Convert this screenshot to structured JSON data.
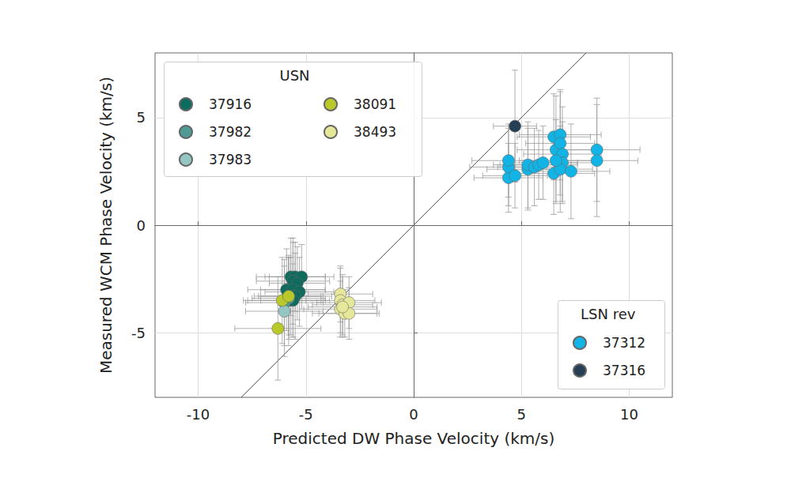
{
  "chart_data": {
    "type": "scatter",
    "x_label": "Predicted DW Phase Velocity (km/s)",
    "y_label": "Measured WCM Phase Velocity (km/s)",
    "xlim": [
      -12,
      12
    ],
    "ylim": [
      -8,
      8
    ],
    "xticks": [
      -10,
      -5,
      0,
      5,
      10
    ],
    "yticks": [
      -5,
      0,
      5
    ],
    "grid": true,
    "marker": "circle",
    "reference_line": {
      "x": [
        -8,
        8
      ],
      "y": [
        -8,
        8
      ],
      "color": "#555555"
    },
    "legend_groups": [
      {
        "title": "USN",
        "legend": "upper left"
      },
      {
        "title": "LSN rev",
        "legend": "lower right"
      }
    ],
    "series": [
      {
        "name": "37916",
        "group": "USN",
        "color": "#0e6b5e",
        "x": [
          -5.7,
          -5.5,
          -5.2,
          -5.6,
          -5.4,
          -5.9,
          -5.6,
          -5.3,
          -5.7,
          -5.5,
          -5.8,
          -5.6
        ],
        "y": [
          -2.4,
          -2.4,
          -2.4,
          -2.6,
          -2.7,
          -3.0,
          -3.0,
          -3.1,
          -3.3,
          -3.3,
          -3.5,
          -3.5
        ],
        "xerr": [
          1.6,
          1.4,
          1.5,
          1.7,
          1.3,
          1.8,
          1.5,
          1.6,
          1.4,
          1.7,
          1.9,
          1.5
        ],
        "yerr": [
          1.8,
          1.6,
          1.5,
          2.0,
          1.7,
          1.9,
          2.2,
          1.6,
          1.8,
          2.0,
          2.1,
          1.7
        ]
      },
      {
        "name": "37982",
        "group": "USN",
        "color": "#4e9a94",
        "x": [
          -5.8,
          -6.0
        ],
        "y": [
          -3.4,
          -3.6
        ],
        "xerr": [
          1.7,
          1.8
        ],
        "yerr": [
          1.9,
          2.0
        ]
      },
      {
        "name": "37983",
        "group": "USN",
        "color": "#94c6c4",
        "x": [
          -6.0
        ],
        "y": [
          -4.0
        ],
        "xerr": [
          1.8
        ],
        "yerr": [
          2.1
        ]
      },
      {
        "name": "38091",
        "group": "USN",
        "color": "#b9c92a",
        "x": [
          -6.3,
          -6.1,
          -5.8
        ],
        "y": [
          -4.8,
          -3.5,
          -3.3
        ],
        "xerr": [
          2.0,
          1.8,
          1.6
        ],
        "yerr": [
          2.4,
          2.0,
          1.8
        ]
      },
      {
        "name": "38493",
        "group": "USN",
        "color": "#e5e89a",
        "x": [
          -3.4,
          -3.4,
          -3.3,
          -3.0,
          -3.4,
          -3.2,
          -3.0,
          -3.3
        ],
        "y": [
          -3.2,
          -3.5,
          -3.7,
          -3.6,
          -3.9,
          -4.1,
          -4.1,
          -3.8
        ],
        "xerr": [
          1.5,
          1.6,
          1.4,
          1.5,
          1.7,
          1.5,
          1.4,
          1.6
        ],
        "yerr": [
          1.3,
          1.5,
          1.4,
          1.2,
          1.3,
          1.1,
          1.2,
          1.4
        ]
      },
      {
        "name": "37312",
        "group": "LSN rev",
        "color": "#12b4e6",
        "x": [
          4.4,
          4.4,
          4.4,
          4.7,
          5.3,
          5.3,
          5.6,
          5.8,
          6.0,
          6.5,
          6.6,
          6.5,
          6.8,
          6.8,
          6.9,
          6.9,
          6.8,
          7.3,
          8.5,
          8.5,
          6.6
        ],
        "y": [
          2.2,
          2.7,
          3.0,
          2.3,
          2.6,
          2.8,
          2.7,
          2.8,
          2.9,
          2.4,
          3.5,
          4.1,
          4.2,
          3.8,
          3.3,
          2.9,
          2.6,
          2.5,
          3.5,
          3.0,
          3.0
        ],
        "xerr": [
          1.6,
          1.8,
          1.7,
          1.5,
          1.9,
          1.6,
          1.7,
          1.8,
          1.6,
          1.9,
          1.8,
          1.7,
          1.9,
          1.6,
          1.8,
          1.7,
          1.5,
          1.8,
          2.0,
          1.9,
          1.7
        ],
        "yerr": [
          1.6,
          1.8,
          1.7,
          1.5,
          1.9,
          2.0,
          1.8,
          1.6,
          1.7,
          1.9,
          2.5,
          2.0,
          2.1,
          2.4,
          2.2,
          1.9,
          2.0,
          2.2,
          2.4,
          2.6,
          1.9
        ]
      },
      {
        "name": "37316",
        "group": "LSN rev",
        "color": "#263f55",
        "x": [
          4.7
        ],
        "y": [
          4.6
        ],
        "xerr": [
          1.0
        ],
        "yerr": [
          2.6
        ]
      }
    ]
  }
}
